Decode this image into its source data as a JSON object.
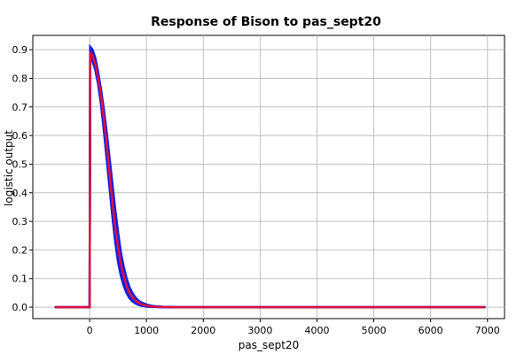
{
  "chart_data": {
    "type": "line",
    "title": "Response of Bison to pas_sept20",
    "xlabel": "pas_sept20",
    "ylabel": "logistic output",
    "xlim": [
      -1000,
      7300
    ],
    "ylim": [
      -0.04,
      0.95
    ],
    "x_ticks": [
      0,
      1000,
      2000,
      3000,
      4000,
      5000,
      6000,
      7000
    ],
    "y_ticks": [
      0.0,
      0.1,
      0.2,
      0.3,
      0.4,
      0.5,
      0.6,
      0.7,
      0.8,
      0.9
    ],
    "x_tick_labels": [
      "0",
      "1000",
      "2000",
      "3000",
      "4000",
      "5000",
      "6000",
      "7000"
    ],
    "y_tick_labels": [
      "0.0",
      "0.1",
      "0.2",
      "0.3",
      "0.4",
      "0.5",
      "0.6",
      "0.7",
      "0.8",
      "0.9"
    ],
    "grid": true,
    "legend": "none",
    "colors": {
      "mean": "#e0103a",
      "band": "#1020e8"
    },
    "series": [
      {
        "role": "mean",
        "x": [
          -600,
          -10,
          0,
          10,
          50,
          100,
          150,
          200,
          250,
          300,
          350,
          400,
          450,
          500,
          550,
          600,
          650,
          700,
          750,
          800,
          850,
          900,
          1000,
          1100,
          1200,
          1300,
          1500,
          2000,
          3000,
          4000,
          5000,
          6000,
          6950
        ],
        "y": [
          0.0,
          0.0,
          0.0,
          0.89,
          0.88,
          0.85,
          0.8,
          0.74,
          0.66,
          0.57,
          0.47,
          0.37,
          0.28,
          0.21,
          0.15,
          0.11,
          0.075,
          0.05,
          0.035,
          0.024,
          0.016,
          0.011,
          0.005,
          0.002,
          0.001,
          0.0005,
          0.0,
          0.0,
          0.0,
          0.0,
          0.0,
          0.0,
          0.0
        ]
      },
      {
        "role": "band-upper",
        "x": [
          -600,
          -10,
          0,
          10,
          50,
          100,
          150,
          200,
          250,
          300,
          350,
          400,
          450,
          500,
          550,
          600,
          650,
          700,
          750,
          800,
          850,
          900,
          1000,
          1100,
          1200,
          1300,
          1500,
          2000,
          3000,
          4000,
          5000,
          6000,
          6950
        ],
        "y": [
          0.0,
          0.0,
          0.0,
          0.91,
          0.9,
          0.87,
          0.82,
          0.76,
          0.69,
          0.61,
          0.52,
          0.43,
          0.34,
          0.26,
          0.19,
          0.14,
          0.1,
          0.07,
          0.05,
          0.035,
          0.024,
          0.017,
          0.009,
          0.004,
          0.002,
          0.001,
          0.0,
          0.0,
          0.0,
          0.0,
          0.0,
          0.0,
          0.0
        ]
      },
      {
        "role": "band-lower",
        "x": [
          -600,
          -10,
          0,
          10,
          50,
          100,
          150,
          200,
          250,
          300,
          350,
          400,
          450,
          500,
          550,
          600,
          650,
          700,
          750,
          800,
          850,
          900,
          1000,
          1100,
          1200,
          1300,
          1500,
          2000,
          3000,
          4000,
          5000,
          6000,
          6950
        ],
        "y": [
          0.0,
          0.0,
          0.0,
          0.87,
          0.86,
          0.83,
          0.78,
          0.71,
          0.62,
          0.52,
          0.42,
          0.32,
          0.23,
          0.16,
          0.11,
          0.075,
          0.05,
          0.032,
          0.021,
          0.014,
          0.009,
          0.006,
          0.002,
          0.001,
          0.0005,
          0.0,
          0.0,
          0.0,
          0.0,
          0.0,
          0.0,
          0.0,
          0.0
        ]
      }
    ]
  }
}
